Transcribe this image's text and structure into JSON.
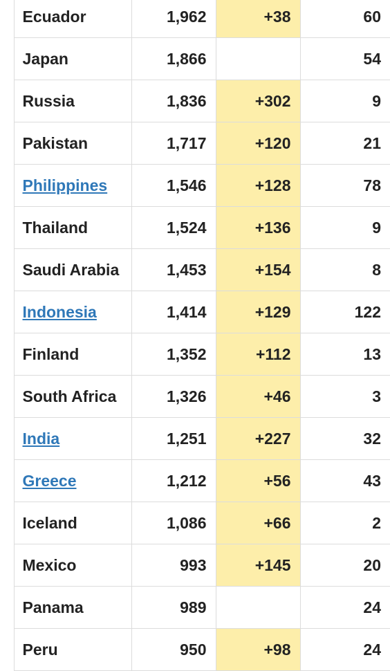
{
  "rows": [
    {
      "country": "Ecuador",
      "is_link": false,
      "total": "1,962",
      "new": "+38",
      "last": "60"
    },
    {
      "country": "Japan",
      "is_link": false,
      "total": "1,866",
      "new": "",
      "last": "54"
    },
    {
      "country": "Russia",
      "is_link": false,
      "total": "1,836",
      "new": "+302",
      "last": "9"
    },
    {
      "country": "Pakistan",
      "is_link": false,
      "total": "1,717",
      "new": "+120",
      "last": "21"
    },
    {
      "country": "Philippines",
      "is_link": true,
      "total": "1,546",
      "new": "+128",
      "last": "78"
    },
    {
      "country": "Thailand",
      "is_link": false,
      "total": "1,524",
      "new": "+136",
      "last": "9"
    },
    {
      "country": "Saudi Arabia",
      "is_link": false,
      "total": "1,453",
      "new": "+154",
      "last": "8"
    },
    {
      "country": "Indonesia",
      "is_link": true,
      "total": "1,414",
      "new": "+129",
      "last": "122"
    },
    {
      "country": "Finland",
      "is_link": false,
      "total": "1,352",
      "new": "+112",
      "last": "13"
    },
    {
      "country": "South Africa",
      "is_link": false,
      "total": "1,326",
      "new": "+46",
      "last": "3"
    },
    {
      "country": "India",
      "is_link": true,
      "total": "1,251",
      "new": "+227",
      "last": "32"
    },
    {
      "country": "Greece",
      "is_link": true,
      "total": "1,212",
      "new": "+56",
      "last": "43"
    },
    {
      "country": "Iceland",
      "is_link": false,
      "total": "1,086",
      "new": "+66",
      "last": "2"
    },
    {
      "country": "Mexico",
      "is_link": false,
      "total": "993",
      "new": "+145",
      "last": "20"
    },
    {
      "country": "Panama",
      "is_link": false,
      "total": "989",
      "new": "",
      "last": "24"
    },
    {
      "country": "Peru",
      "is_link": false,
      "total": "950",
      "new": "+98",
      "last": "24"
    }
  ],
  "colors": {
    "highlight": "#fdeeaa",
    "link": "#2f78b8",
    "text": "#222222",
    "border": "#dcdcdc"
  }
}
